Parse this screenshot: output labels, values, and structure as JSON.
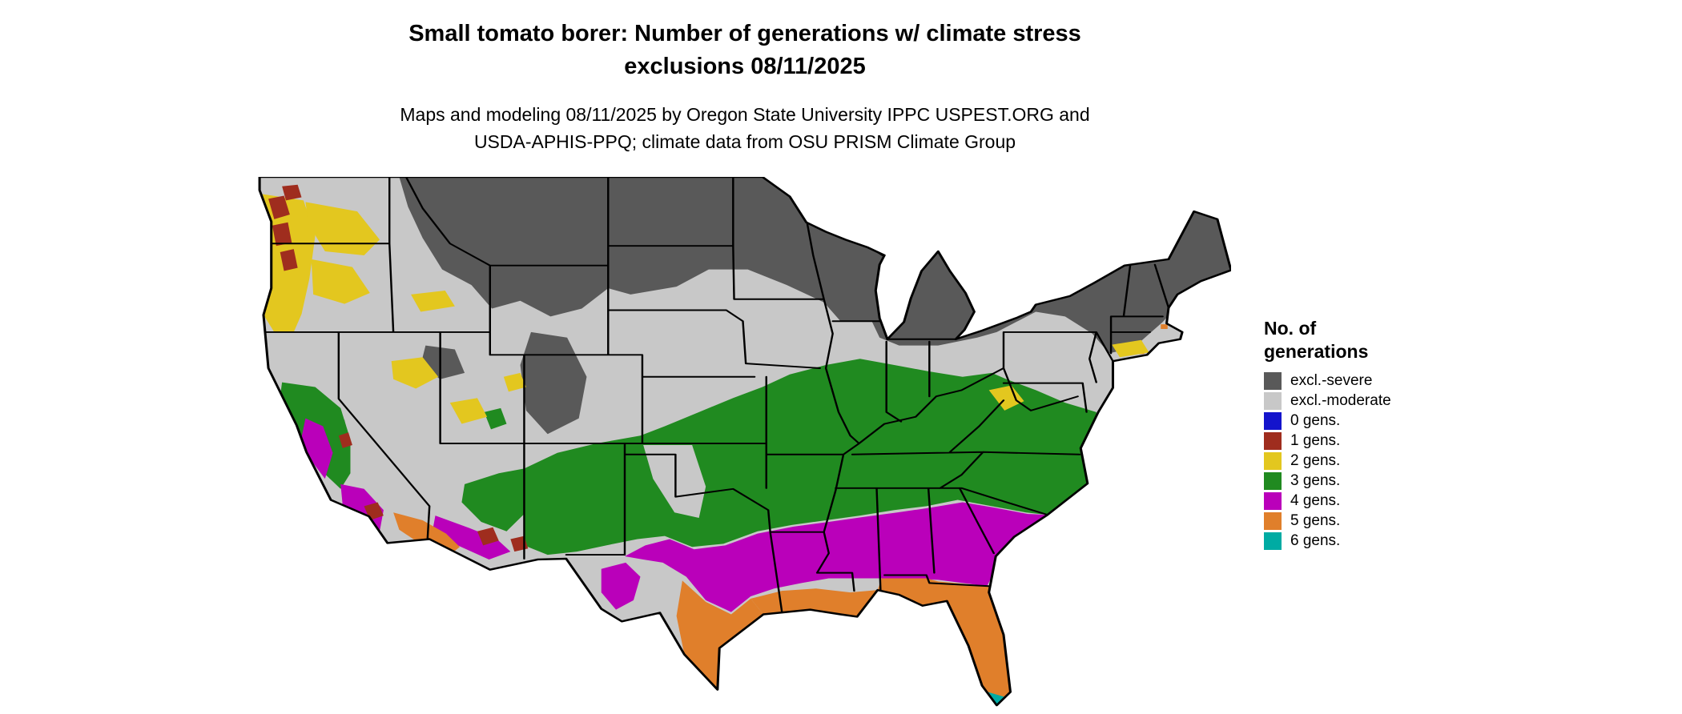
{
  "header": {
    "title_line1": "Small tomato borer: Number of generations w/ climate stress",
    "title_line2": "exclusions 08/11/2025",
    "subtitle_line1": "Maps and modeling 08/11/2025 by Oregon State University IPPC USPEST.ORG and",
    "subtitle_line2": "USDA-APHIS-PPQ; climate data from OSU PRISM Climate Group"
  },
  "legend": {
    "title_line1": "No. of",
    "title_line2": "generations",
    "entries": [
      {
        "key": "severe",
        "label": "excl.-severe",
        "color": "#595959"
      },
      {
        "key": "moderate",
        "label": "excl.-moderate",
        "color": "#c8c8c8"
      },
      {
        "key": "g0",
        "label": "0 gens.",
        "color": "#1414cc"
      },
      {
        "key": "g1",
        "label": "1 gens.",
        "color": "#9f2d1e"
      },
      {
        "key": "g2",
        "label": "2 gens.",
        "color": "#e3c71f"
      },
      {
        "key": "g3",
        "label": "3 gens.",
        "color": "#208a20"
      },
      {
        "key": "g4",
        "label": "4 gens.",
        "color": "#ba00ba"
      },
      {
        "key": "g5",
        "label": "5 gens.",
        "color": "#e07f2b"
      },
      {
        "key": "g6",
        "label": "6 gens.",
        "color": "#00aba3"
      }
    ]
  }
}
